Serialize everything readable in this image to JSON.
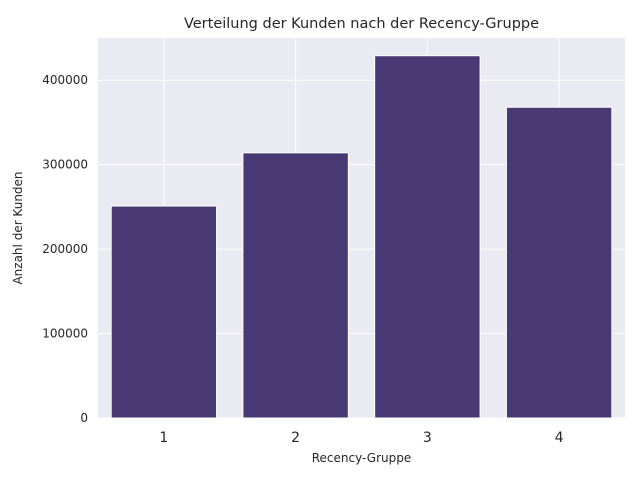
{
  "chart_data": {
    "type": "bar",
    "title": "Verteilung der Kunden nach der Recency-Gruppe",
    "xlabel": "Recency-Gruppe",
    "ylabel": "Anzahl der Kunden",
    "categories": [
      "1",
      "2",
      "3",
      "4"
    ],
    "values": [
      251000,
      314000,
      429000,
      368000
    ],
    "ylim": [
      0,
      450000
    ],
    "yticks": [
      "0",
      "100000",
      "200000",
      "300000",
      "400000"
    ],
    "ytick_values": [
      0,
      100000,
      200000,
      300000,
      400000
    ],
    "grid": true,
    "bar_color": "#483873",
    "background_color": "#eaeaf2"
  }
}
